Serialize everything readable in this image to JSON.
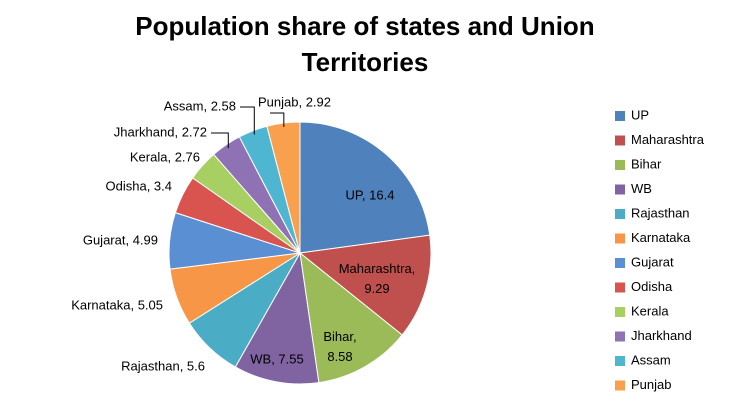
{
  "chart_data": {
    "type": "pie",
    "title": "Population share of states and Union Territories",
    "categories": [
      "UP",
      "Maharashtra",
      "Bihar",
      "WB",
      "Rajasthan",
      "Karnataka",
      "Gujarat",
      "Odisha",
      "Kerala",
      "Jharkhand",
      "Assam",
      "Punjab"
    ],
    "values": [
      16.4,
      9.29,
      8.58,
      7.55,
      5.6,
      5.05,
      4.99,
      3.4,
      2.76,
      2.72,
      2.58,
      2.92
    ],
    "value_labels": [
      "UP, 16.4",
      "Maharashtra, 9.29",
      "Bihar, 8.58",
      "WB, 7.55",
      "Rajasthan, 5.6",
      "Karnataka, 5.05",
      "Gujarat, 4.99",
      "Odisha, 3.4",
      "Kerala, 2.76",
      "Jharkhand, 2.72",
      "Assam, 2.58",
      "Punjab, 2.92"
    ],
    "colors": [
      "#4f81bd",
      "#c0504d",
      "#9bbb59",
      "#8064a2",
      "#4bacc6",
      "#f79646",
      "#5b8fd4",
      "#d9534f",
      "#a8cf62",
      "#8f72b3",
      "#4fb6d2",
      "#f9a04f"
    ],
    "legend": "right"
  }
}
